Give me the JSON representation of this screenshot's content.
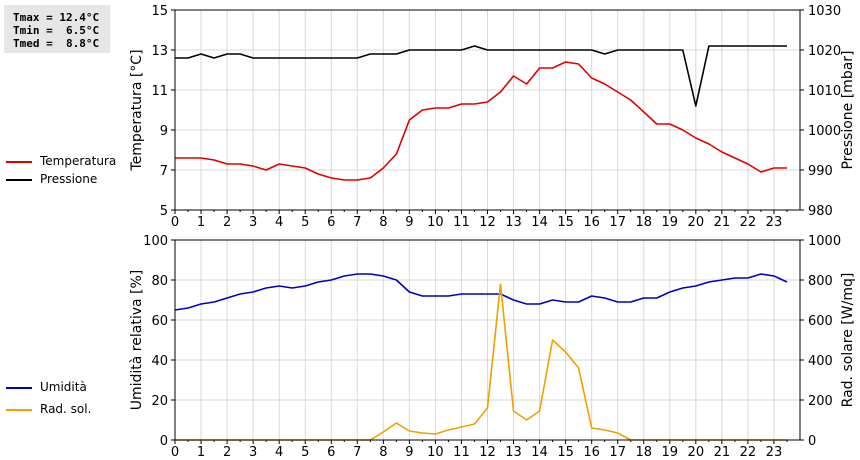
{
  "stats": {
    "tmax": "Tmax = 12.4°C",
    "tmin": "Tmin =  6.5°C",
    "tmed": "Tmed =  8.8°C"
  },
  "legend_top": [
    {
      "label": "Temperatura",
      "color": "#e00000"
    },
    {
      "label": "Pressione",
      "color": "#000000"
    }
  ],
  "legend_bottom": [
    {
      "label": "Umidità",
      "color": "#0000c0"
    },
    {
      "label": "Rad. sol.",
      "color": "#f0a000"
    }
  ],
  "chart_data": [
    {
      "type": "line",
      "xlim": [
        0,
        24
      ],
      "x_ticks": [
        0,
        1,
        2,
        3,
        4,
        5,
        6,
        7,
        8,
        9,
        10,
        11,
        12,
        13,
        14,
        15,
        16,
        17,
        18,
        19,
        20,
        21,
        22,
        23
      ],
      "grid": true,
      "y_left": {
        "label": "Temperatura [°C]",
        "lim": [
          5,
          15
        ],
        "ticks": [
          5,
          7,
          9,
          11,
          13,
          15
        ]
      },
      "y_right": {
        "label": "Pressione [mbar]",
        "lim": [
          980,
          1030
        ],
        "ticks": [
          980,
          990,
          1000,
          1010,
          1020,
          1030
        ]
      },
      "series": [
        {
          "name": "Temperatura",
          "axis": "left",
          "color": "#e00000",
          "x": [
            0,
            1,
            1.5,
            2,
            2.5,
            3,
            3.5,
            4,
            4.5,
            5,
            5.5,
            6,
            6.5,
            7,
            7.5,
            8,
            8.5,
            9,
            9.5,
            10,
            10.5,
            11,
            11.5,
            12,
            12.5,
            13,
            13.5,
            14,
            14.5,
            15,
            15.5,
            16,
            16.5,
            17,
            17.5,
            18,
            18.5,
            19,
            19.5,
            20,
            20.5,
            21,
            21.5,
            22,
            22.5,
            23,
            23.5
          ],
          "y": [
            7.6,
            7.6,
            7.5,
            7.3,
            7.3,
            7.2,
            7.0,
            7.3,
            7.2,
            7.1,
            6.8,
            6.6,
            6.5,
            6.5,
            6.6,
            7.1,
            7.8,
            9.5,
            10.0,
            10.1,
            10.1,
            10.3,
            10.3,
            10.4,
            10.9,
            11.7,
            11.3,
            12.1,
            12.1,
            12.4,
            12.3,
            11.6,
            11.3,
            10.9,
            10.5,
            9.9,
            9.3,
            9.3,
            9.0,
            8.6,
            8.3,
            7.9,
            7.6,
            7.3,
            6.9,
            7.1,
            7.1
          ]
        },
        {
          "name": "Pressione",
          "axis": "right",
          "color": "#000000",
          "x": [
            0,
            0.5,
            1,
            1.5,
            2,
            2.5,
            3,
            3.5,
            4,
            4.5,
            5,
            5.5,
            6,
            6.5,
            7,
            7.5,
            8,
            8.5,
            9,
            9.5,
            10,
            10.5,
            11,
            11.5,
            12,
            12.5,
            13,
            13.5,
            14,
            14.5,
            15,
            15.5,
            16,
            16.5,
            17,
            17.5,
            18,
            18.5,
            19,
            19.5,
            20,
            20.5,
            21,
            21.5,
            22,
            22.5,
            23,
            23.5
          ],
          "y": [
            1018,
            1018,
            1019,
            1018,
            1019,
            1019,
            1018,
            1018,
            1018,
            1018,
            1018,
            1018,
            1018,
            1018,
            1018,
            1019,
            1019,
            1019,
            1020,
            1020,
            1020,
            1020,
            1020,
            1021,
            1020,
            1020,
            1020,
            1020,
            1020,
            1020,
            1020,
            1020,
            1020,
            1019,
            1020,
            1020,
            1020,
            1020,
            1020,
            1020,
            1006,
            1021,
            1021,
            1021,
            1021,
            1021,
            1021,
            1021
          ]
        }
      ]
    },
    {
      "type": "line",
      "xlim": [
        0,
        24
      ],
      "x_ticks": [
        0,
        1,
        2,
        3,
        4,
        5,
        6,
        7,
        8,
        9,
        10,
        11,
        12,
        13,
        14,
        15,
        16,
        17,
        18,
        19,
        20,
        21,
        22,
        23
      ],
      "grid": true,
      "y_left": {
        "label": "Umidità relativa [%]",
        "lim": [
          0,
          100
        ],
        "ticks": [
          0,
          20,
          40,
          60,
          80,
          100
        ]
      },
      "y_right": {
        "label": "Rad. solare [W/mq]",
        "lim": [
          0,
          1000
        ],
        "ticks": [
          0,
          200,
          400,
          600,
          800,
          1000
        ]
      },
      "series": [
        {
          "name": "Umidità",
          "axis": "left",
          "color": "#0000c0",
          "x": [
            0,
            0.5,
            1,
            1.5,
            2,
            2.5,
            3,
            3.5,
            4,
            4.5,
            5,
            5.5,
            6,
            6.5,
            7,
            7.5,
            8,
            8.5,
            9,
            9.5,
            10,
            10.5,
            11,
            11.5,
            12,
            12.5,
            13,
            13.5,
            14,
            14.5,
            15,
            15.5,
            16,
            16.5,
            17,
            17.5,
            18,
            18.5,
            19,
            19.5,
            20,
            20.5,
            21,
            21.5,
            22,
            22.5,
            23,
            23.5
          ],
          "y": [
            65,
            66,
            68,
            69,
            71,
            73,
            74,
            76,
            77,
            76,
            77,
            79,
            80,
            82,
            83,
            83,
            82,
            80,
            74,
            72,
            72,
            72,
            73,
            73,
            73,
            73,
            70,
            68,
            68,
            70,
            69,
            69,
            72,
            71,
            69,
            69,
            71,
            71,
            74,
            76,
            77,
            79,
            80,
            81,
            81,
            83,
            82,
            79
          ]
        },
        {
          "name": "Rad. sol.",
          "axis": "right",
          "color": "#f0a000",
          "x": [
            0,
            0.5,
            1,
            1.5,
            2,
            2.5,
            3,
            3.5,
            4,
            4.5,
            5,
            5.5,
            6,
            6.5,
            7,
            7.5,
            8,
            8.5,
            9,
            9.5,
            10,
            10.5,
            11,
            11.5,
            12,
            12.5,
            13,
            13.5,
            14,
            14.5,
            15,
            15.5,
            16,
            16.5,
            17,
            17.5,
            18,
            18.5,
            19,
            19.5,
            20,
            20.5,
            21,
            21.5,
            22,
            22.5,
            23,
            23.5
          ],
          "y": [
            0,
            0,
            0,
            0,
            0,
            0,
            0,
            0,
            0,
            0,
            0,
            0,
            0,
            0,
            0,
            0,
            40,
            85,
            45,
            35,
            30,
            50,
            65,
            80,
            160,
            780,
            145,
            100,
            145,
            500,
            440,
            360,
            60,
            50,
            35,
            0,
            0,
            0,
            0,
            0,
            0,
            0,
            0,
            0,
            0,
            0,
            0,
            0
          ]
        }
      ]
    }
  ]
}
